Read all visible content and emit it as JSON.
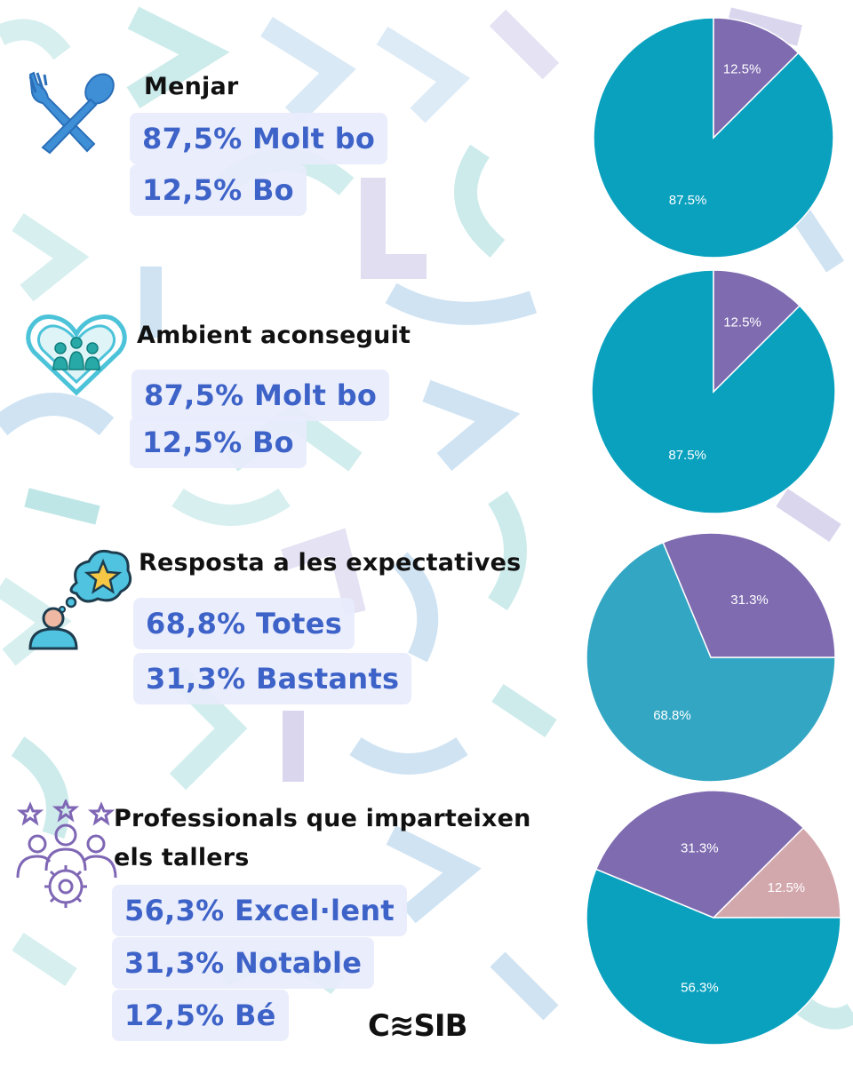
{
  "sections": [
    {
      "title": "Menjar",
      "items": [
        "87,5% Molt bo",
        "12,5% Bo"
      ],
      "icon": "fork-spoon-icon"
    },
    {
      "title": "Ambient aconseguit",
      "items": [
        "87,5% Molt bo",
        "12,5% Bo"
      ],
      "icon": "heart-people-icon"
    },
    {
      "title": "Resposta a les expectatives",
      "items": [
        "68,8% Totes",
        "31,3% Bastants"
      ],
      "icon": "person-thought-star-icon"
    },
    {
      "title": "Professionals que imparteixen els tallers",
      "items": [
        "56,3% Excel·lent",
        "31,3% Notable",
        "12,5% Bé"
      ],
      "icon": "team-gear-stars-icon"
    }
  ],
  "logo": "C≋SIB",
  "colors": {
    "teal": "#0aa1bf",
    "purple": "#7f6bb0",
    "pink": "#d3a8ad",
    "pill_text": "#3e63c8"
  },
  "chart_data": [
    {
      "type": "pie",
      "labels": [
        "87.5%",
        "12.5%"
      ],
      "values": [
        87.5,
        12.5
      ],
      "colors": [
        "#0aa1bf",
        "#7f6bb0"
      ]
    },
    {
      "type": "pie",
      "labels": [
        "87.5%",
        "12.5%"
      ],
      "values": [
        87.5,
        12.5
      ],
      "colors": [
        "#0aa1bf",
        "#7f6bb0"
      ]
    },
    {
      "type": "pie",
      "labels": [
        "68.8%",
        "31.3%"
      ],
      "values": [
        68.8,
        31.3
      ],
      "colors": [
        "#33a6c4",
        "#7f6bb0"
      ]
    },
    {
      "type": "pie",
      "labels": [
        "12.5%",
        "56.3%",
        "31.3%"
      ],
      "values": [
        12.5,
        56.3,
        31.3
      ],
      "colors": [
        "#d3a8ad",
        "#0aa1bf",
        "#7f6bb0"
      ]
    }
  ]
}
